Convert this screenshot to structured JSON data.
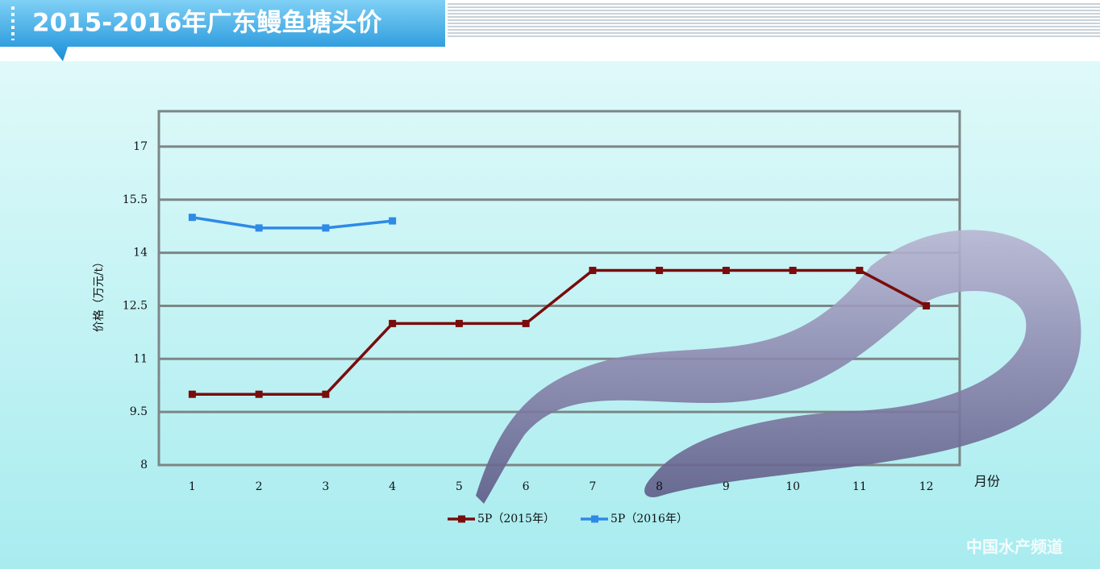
{
  "chart_data": {
    "type": "line",
    "title": "2015-2016年广东鳗鱼塘头价",
    "y_label": "价格（万元/t）",
    "x_label": "月份",
    "categories": [
      "1",
      "2",
      "3",
      "4",
      "5",
      "6",
      "7",
      "8",
      "9",
      "10",
      "11",
      "12"
    ],
    "series": [
      {
        "name": "5P（2015年）",
        "color": "#7a0c0c",
        "values": [
          10,
          10,
          10,
          12,
          12,
          12,
          13.5,
          13.5,
          13.5,
          13.5,
          13.5,
          12.5
        ]
      },
      {
        "name": "5P（2016年）",
        "color": "#2e8ae6",
        "values": [
          15,
          14.7,
          14.7,
          14.9,
          null,
          null,
          null,
          null,
          null,
          null,
          null,
          null
        ]
      }
    ],
    "ylim": [
      8,
      18
    ],
    "yticks": [
      8,
      9.5,
      11,
      12.5,
      14,
      15.5,
      17
    ],
    "grid": true,
    "legend": "bottom",
    "watermark": "中国水产频道"
  }
}
